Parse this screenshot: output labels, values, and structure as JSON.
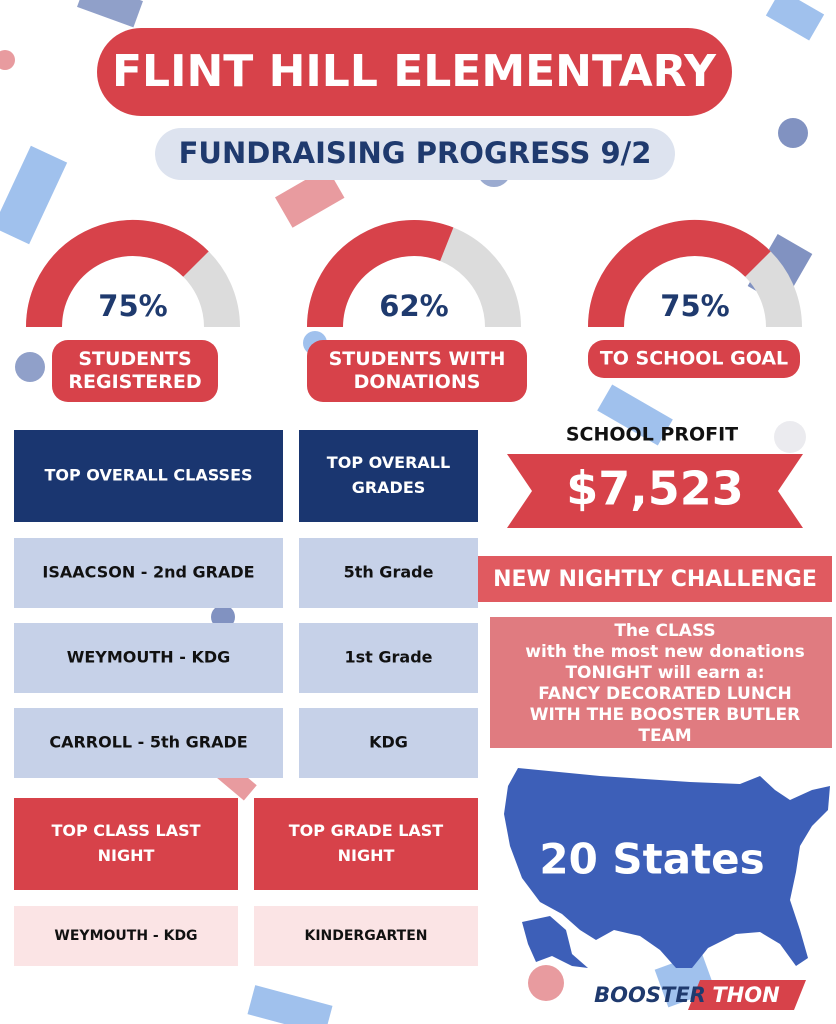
{
  "header": {
    "title": "FLINT HILL ELEMENTARY",
    "subtitle": "FUNDRAISING PROGRESS 9/2"
  },
  "gauges": [
    {
      "value": 75,
      "value_label": "75%",
      "label_lines": [
        "STUDENTS",
        "REGISTERED"
      ]
    },
    {
      "value": 62,
      "value_label": "62%",
      "label_lines": [
        "STUDENTS WITH",
        "DONATIONS"
      ]
    },
    {
      "value": 75,
      "value_label": "75%",
      "label_lines": [
        "TO SCHOOL GOAL"
      ]
    }
  ],
  "overall_table": {
    "headers": [
      [
        "TOP OVERALL CLASSES"
      ],
      [
        "TOP OVERALL",
        "GRADES"
      ]
    ],
    "rows": [
      [
        "ISAACSON - 2nd GRADE",
        "5th Grade"
      ],
      [
        "WEYMOUTH - KDG",
        "1st Grade"
      ],
      [
        "CARROLL - 5th GRADE",
        "KDG"
      ]
    ]
  },
  "last_night_table": {
    "headers": [
      [
        "TOP CLASS LAST",
        "NIGHT"
      ],
      [
        "TOP GRADE LAST",
        "NIGHT"
      ]
    ],
    "rows": [
      [
        "WEYMOUTH - KDG",
        "KINDERGARTEN"
      ]
    ]
  },
  "profit": {
    "label": "SCHOOL PROFIT",
    "amount": "$7,523"
  },
  "challenge": {
    "title": "NEW NIGHTLY CHALLENGE",
    "lines": [
      "The CLASS",
      "with the most new  donations",
      "TONIGHT will earn a:",
      "FANCY DECORATED LUNCH",
      "WITH THE BOOSTER BUTLER",
      "TEAM"
    ]
  },
  "states": "20 States",
  "logo": {
    "left": "BOOSTER",
    "right": "THON"
  }
}
